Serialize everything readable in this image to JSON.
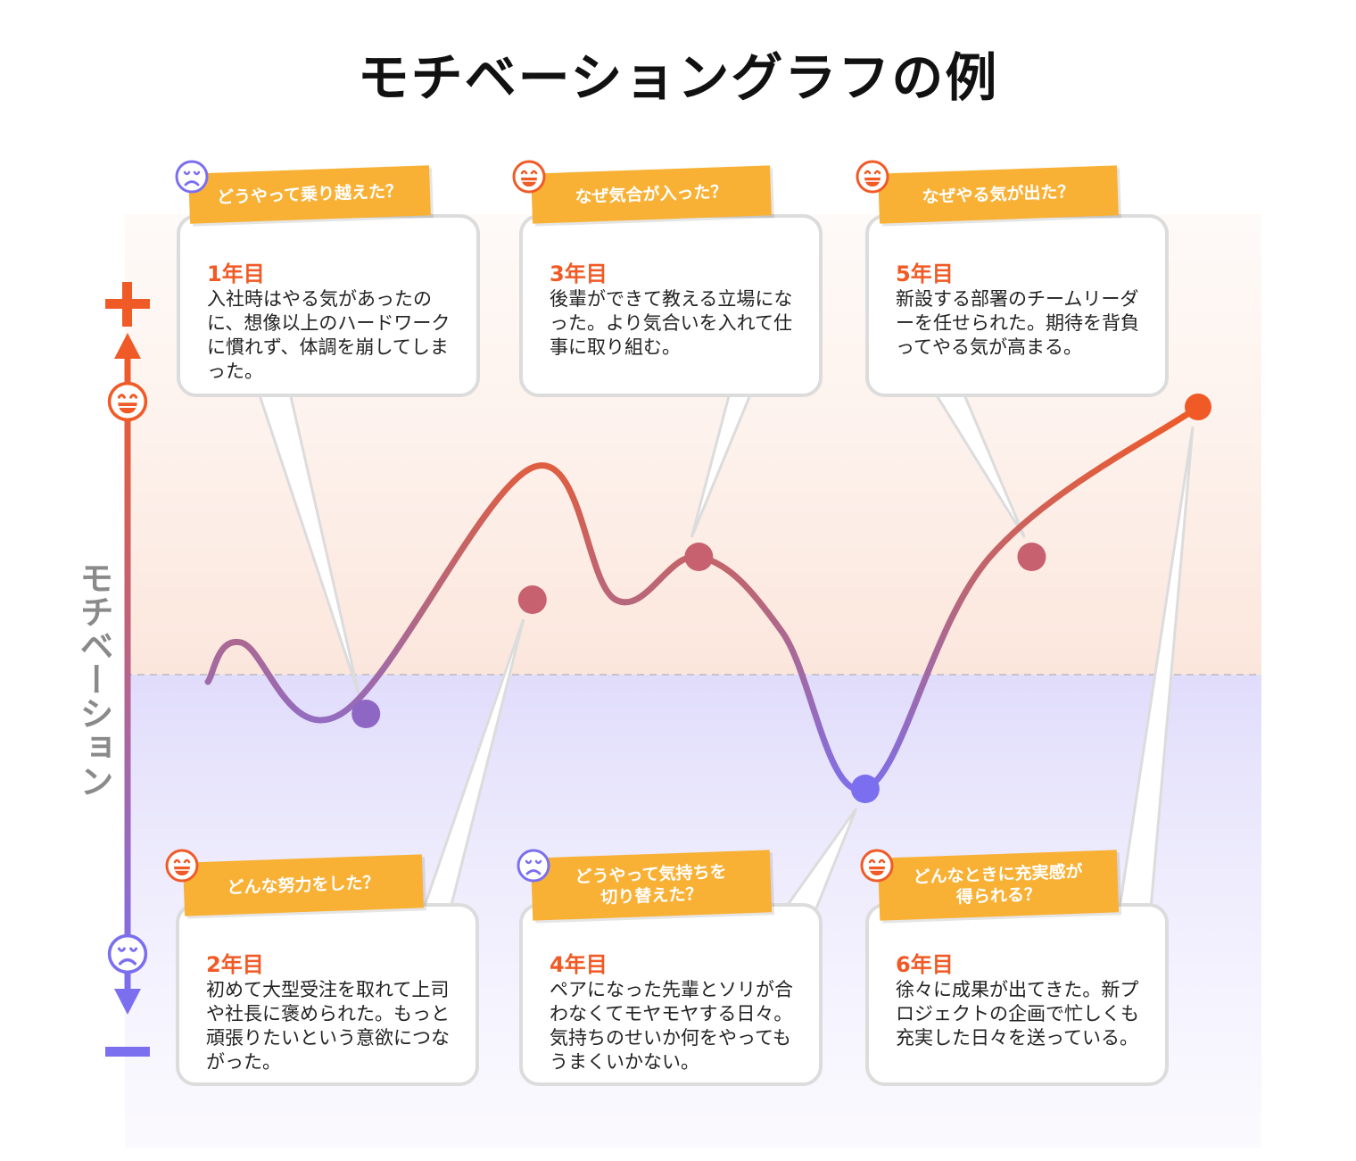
{
  "title": "モチベーショングラフの例",
  "ylabel": "モチベーション",
  "colors": {
    "high": "#f05a26",
    "low": "#7b6ff0",
    "tag": "#f8b135",
    "mid": "#c8616f"
  },
  "chart_data": {
    "type": "line",
    "title": "モチベーショングラフの例",
    "ylabel": "モチベーション",
    "xlabel": "",
    "ylim": [
      -1,
      1
    ],
    "curve": [
      {
        "x": 0.05,
        "y": -0.02
      },
      {
        "x": 0.25,
        "y": 0.09
      },
      {
        "x": 0.85,
        "y": -0.11
      },
      {
        "x": 2.0,
        "y": 0.58
      },
      {
        "x": 2.5,
        "y": 0.21
      },
      {
        "x": 3.0,
        "y": 0.33
      },
      {
        "x": 3.5,
        "y": 0.12
      },
      {
        "x": 4.0,
        "y": -0.32
      },
      {
        "x": 4.75,
        "y": 0.33
      },
      {
        "x": 6.0,
        "y": 0.75
      }
    ],
    "points": [
      {
        "label": "1年目",
        "x": 1,
        "y": -0.11
      },
      {
        "label": "2年目",
        "x": 2,
        "y": 0.21
      },
      {
        "label": "3年目",
        "x": 3,
        "y": 0.33
      },
      {
        "label": "4年目",
        "x": 4,
        "y": -0.32
      },
      {
        "label": "5年目",
        "x": 5,
        "y": 0.33
      },
      {
        "label": "6年目",
        "x": 6,
        "y": 0.75
      }
    ]
  },
  "cards": [
    {
      "id": "y1",
      "mood": "sad",
      "tag": "どうやって乗り越えた？",
      "year": "1年目",
      "text": "入社時はやる気があったのに、想像以上のハードワークに慣れず、体調を崩してしまった。"
    },
    {
      "id": "y3",
      "mood": "happy",
      "tag": "なぜ気合が入った？",
      "year": "3年目",
      "text": "後輩ができて教える立場になった。より気合いを入れて仕事に取り組む。"
    },
    {
      "id": "y5",
      "mood": "happy",
      "tag": "なぜやる気が出た？",
      "year": "5年目",
      "text": "新設する部署のチームリーダーを任せられた。期待を背負ってやる気が高まる。"
    },
    {
      "id": "y2",
      "mood": "happy",
      "tag": "どんな努力をした？",
      "year": "2年目",
      "text": "初めて大型受注を取れて上司や社長に褒められた。もっと頑張りたいという意欲につながった。"
    },
    {
      "id": "y4",
      "mood": "sad",
      "tag": "どうやって気持ちを\n切り替えた？",
      "year": "4年目",
      "text": "ペアになった先輩とソリが合わなくてモヤモヤする日々。気持ちのせいか何をやってもうまくいかない。"
    },
    {
      "id": "y6",
      "mood": "happy",
      "tag": "どんなときに充実感が\n得られる？",
      "year": "6年目",
      "text": "徐々に成果が出てきた。新プロジェクトの企画で忙しくも充実した日々を送っている。"
    }
  ]
}
